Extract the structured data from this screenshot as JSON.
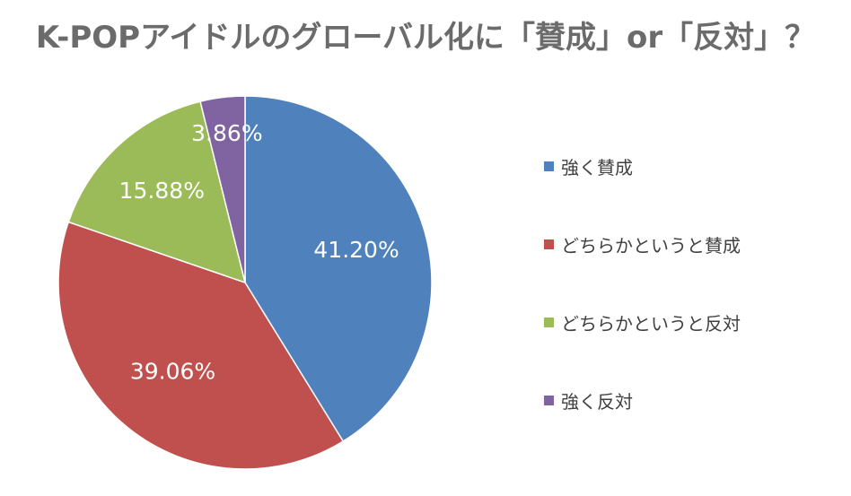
{
  "chart_data": {
    "type": "pie",
    "title": "K-POPアイドルのグローバル化に「賛成」or「反対」？",
    "start_angle_deg": 0,
    "direction": "clockwise",
    "categories": [
      "強く賛成",
      "どちらかというと賛成",
      "どちらかというと反対",
      "強く反対"
    ],
    "values": [
      41.2,
      39.06,
      15.88,
      3.86
    ],
    "data_labels": [
      "41.20%",
      "39.06%",
      "15.88%",
      "3.86%"
    ],
    "colors": [
      "#4f81bd",
      "#c0504d",
      "#9bbb59",
      "#8064a2"
    ],
    "legend_position": "right"
  }
}
